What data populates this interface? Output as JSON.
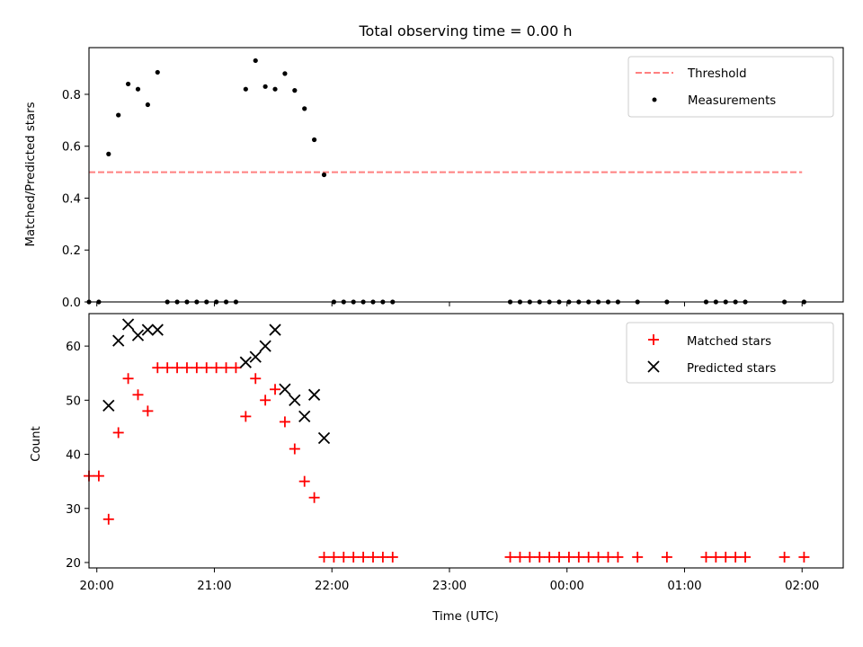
{
  "chart_data": [
    {
      "type": "scatter",
      "title": "Total observing time = 0.00 h",
      "ylabel": "Matched/Predicted stars",
      "xlabel": "",
      "xlim": [
        "19:56",
        "02:21"
      ],
      "ylim": [
        0.0,
        0.98
      ],
      "yticks": [
        0.0,
        0.2,
        0.4,
        0.6,
        0.8
      ],
      "ytick_labels": [
        "0.0",
        "0.2",
        "0.4",
        "0.6",
        "0.8"
      ],
      "grid": false,
      "legend_placement": "top-right",
      "threshold": {
        "name": "Threshold",
        "value": 0.5,
        "x_range": [
          "19:56",
          "02:00"
        ],
        "color": "#ff8080",
        "style": "dashed"
      },
      "series": [
        {
          "name": "Measurements",
          "color": "#000000",
          "marker": "dot",
          "x": [
            "19:56",
            "20:01",
            "20:06",
            "20:11",
            "20:16",
            "20:21",
            "20:26",
            "20:31",
            "20:36",
            "20:41",
            "20:46",
            "20:51",
            "20:56",
            "21:01",
            "21:06",
            "21:11",
            "21:16",
            "21:21",
            "21:26",
            "21:31",
            "21:36",
            "21:41",
            "21:46",
            "21:51",
            "21:56",
            "22:01",
            "22:06",
            "22:11",
            "22:16",
            "22:21",
            "22:26",
            "22:31",
            "23:31",
            "23:36",
            "23:41",
            "23:46",
            "23:51",
            "23:56",
            "00:01",
            "00:06",
            "00:11",
            "00:16",
            "00:21",
            "00:26",
            "00:36",
            "00:51",
            "01:11",
            "01:16",
            "01:21",
            "01:26",
            "01:31",
            "01:51",
            "02:01"
          ],
          "y": [
            0.0,
            0.0,
            0.57,
            0.72,
            0.84,
            0.82,
            0.76,
            0.885,
            0.0,
            0.0,
            0.0,
            0.0,
            0.0,
            0.0,
            0.0,
            0.0,
            0.82,
            0.93,
            0.83,
            0.82,
            0.88,
            0.815,
            0.745,
            0.625,
            0.49,
            0.0,
            0.0,
            0.0,
            0.0,
            0.0,
            0.0,
            0.0,
            0.0,
            0.0,
            0.0,
            0.0,
            0.0,
            0.0,
            0.0,
            0.0,
            0.0,
            0.0,
            0.0,
            0.0,
            0.0,
            0.0,
            0.0,
            0.0,
            0.0,
            0.0,
            0.0,
            0.0,
            0.0
          ]
        }
      ]
    },
    {
      "type": "scatter",
      "title": "",
      "ylabel": "Count",
      "xlabel": "Time (UTC)",
      "xlim": [
        "19:56",
        "02:21"
      ],
      "ylim": [
        19,
        66
      ],
      "yticks": [
        20,
        30,
        40,
        50,
        60
      ],
      "ytick_labels": [
        "20",
        "30",
        "40",
        "50",
        "60"
      ],
      "xticks": [
        "20:00",
        "21:00",
        "22:00",
        "23:00",
        "00:00",
        "01:00",
        "02:00"
      ],
      "grid": false,
      "legend_placement": "top-right",
      "series": [
        {
          "name": "Matched stars",
          "color": "#ff0000",
          "marker": "plus",
          "x": [
            "19:56",
            "20:01",
            "20:06",
            "20:11",
            "20:16",
            "20:21",
            "20:26",
            "20:31",
            "20:36",
            "20:41",
            "20:46",
            "20:51",
            "20:56",
            "21:01",
            "21:06",
            "21:11",
            "21:16",
            "21:21",
            "21:26",
            "21:31",
            "21:36",
            "21:41",
            "21:46",
            "21:51",
            "21:56",
            "22:01",
            "22:06",
            "22:11",
            "22:16",
            "22:21",
            "22:26",
            "22:31",
            "23:31",
            "23:36",
            "23:41",
            "23:46",
            "23:51",
            "23:56",
            "00:01",
            "00:06",
            "00:11",
            "00:16",
            "00:21",
            "00:26",
            "00:36",
            "00:51",
            "01:11",
            "01:16",
            "01:21",
            "01:26",
            "01:31",
            "01:51",
            "02:01"
          ],
          "y": [
            36,
            36,
            28,
            44,
            54,
            51,
            48,
            56,
            56,
            56,
            56,
            56,
            56,
            56,
            56,
            56,
            47,
            54,
            50,
            52,
            46,
            41,
            35,
            32,
            21,
            21,
            21,
            21,
            21,
            21,
            21,
            21,
            21,
            21,
            21,
            21,
            21,
            21,
            21,
            21,
            21,
            21,
            21,
            21,
            21,
            21,
            21,
            21,
            21,
            21,
            21,
            21,
            21
          ]
        },
        {
          "name": "Predicted stars",
          "color": "#000000",
          "marker": "x",
          "x": [
            "20:06",
            "20:11",
            "20:16",
            "20:21",
            "20:26",
            "20:31",
            "21:16",
            "21:21",
            "21:26",
            "21:31",
            "21:36",
            "21:41",
            "21:46",
            "21:51",
            "21:56"
          ],
          "y": [
            49,
            61,
            64,
            62,
            63,
            63,
            57,
            58,
            60,
            63,
            52,
            50,
            47,
            51,
            43
          ]
        }
      ]
    }
  ]
}
